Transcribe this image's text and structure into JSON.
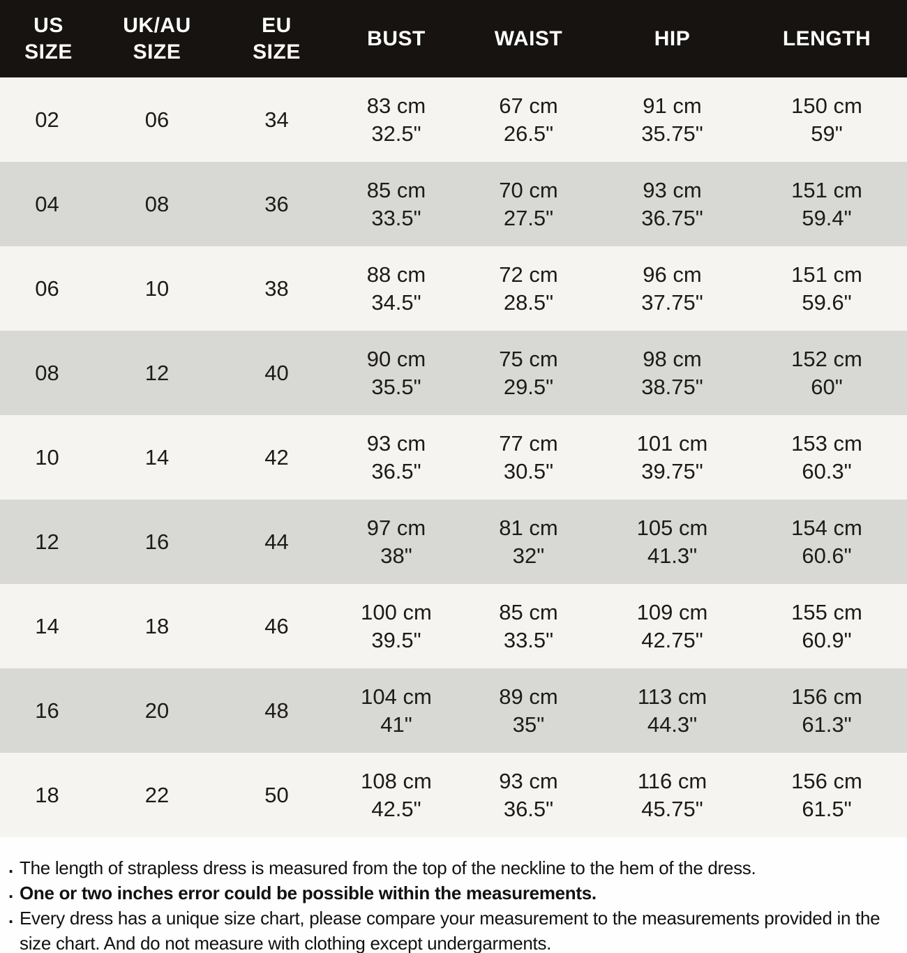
{
  "colors": {
    "header_bg": "#161310",
    "header_text": "#ffffff",
    "row_light": "#f5f4f1",
    "row_gray": "#d8d8d5",
    "body_text": "#1d1b1a"
  },
  "table": {
    "headers": [
      "US\nSIZE",
      "UK/AU\nSIZE",
      "EU\nSIZE",
      "BUST",
      "WAIST",
      "HIP",
      "LENGTH"
    ],
    "rows": [
      {
        "us": "02",
        "uk": "06",
        "eu": "34",
        "bust": [
          "83 cm",
          "32.5\""
        ],
        "waist": [
          "67 cm",
          "26.5\""
        ],
        "hip": [
          "91 cm",
          "35.75\""
        ],
        "length": [
          "150 cm",
          "59\""
        ]
      },
      {
        "us": "04",
        "uk": "08",
        "eu": "36",
        "bust": [
          "85 cm",
          "33.5\""
        ],
        "waist": [
          "70 cm",
          "27.5\""
        ],
        "hip": [
          "93 cm",
          "36.75\""
        ],
        "length": [
          "151 cm",
          "59.4\""
        ]
      },
      {
        "us": "06",
        "uk": "10",
        "eu": "38",
        "bust": [
          "88 cm",
          "34.5\""
        ],
        "waist": [
          "72 cm",
          "28.5\""
        ],
        "hip": [
          "96 cm",
          "37.75\""
        ],
        "length": [
          "151 cm",
          "59.6\""
        ]
      },
      {
        "us": "08",
        "uk": "12",
        "eu": "40",
        "bust": [
          "90 cm",
          "35.5\""
        ],
        "waist": [
          "75 cm",
          "29.5\""
        ],
        "hip": [
          "98 cm",
          "38.75\""
        ],
        "length": [
          "152 cm",
          "60\""
        ]
      },
      {
        "us": "10",
        "uk": "14",
        "eu": "42",
        "bust": [
          "93 cm",
          "36.5\""
        ],
        "waist": [
          "77 cm",
          "30.5\""
        ],
        "hip": [
          "101 cm",
          "39.75\""
        ],
        "length": [
          "153 cm",
          "60.3\""
        ]
      },
      {
        "us": "12",
        "uk": "16",
        "eu": "44",
        "bust": [
          "97 cm",
          "38\""
        ],
        "waist": [
          "81 cm",
          "32\""
        ],
        "hip": [
          "105 cm",
          "41.3\""
        ],
        "length": [
          "154 cm",
          "60.6\""
        ]
      },
      {
        "us": "14",
        "uk": "18",
        "eu": "46",
        "bust": [
          "100 cm",
          "39.5\""
        ],
        "waist": [
          "85 cm",
          "33.5\""
        ],
        "hip": [
          "109 cm",
          "42.75\""
        ],
        "length": [
          "155 cm",
          "60.9\""
        ]
      },
      {
        "us": "16",
        "uk": "20",
        "eu": "48",
        "bust": [
          "104 cm",
          "41\""
        ],
        "waist": [
          "89 cm",
          "35\""
        ],
        "hip": [
          "113 cm",
          "44.3\""
        ],
        "length": [
          "156 cm",
          "61.3\""
        ]
      },
      {
        "us": "18",
        "uk": "22",
        "eu": "50",
        "bust": [
          "108 cm",
          "42.5\""
        ],
        "waist": [
          "93 cm",
          "36.5\""
        ],
        "hip": [
          "116 cm",
          "45.75\""
        ],
        "length": [
          "156 cm",
          "61.5\""
        ]
      }
    ]
  },
  "notes": {
    "bullet": ".",
    "items": [
      {
        "text": "The length of strapless dress is measured from the top of the neckline to the hem of the dress.",
        "bold": false
      },
      {
        "text": "One or two inches error could be possible within the measurements.",
        "bold": true
      },
      {
        "text": "Every dress has a unique size chart, please compare your measurement to the measurements provided in the size chart. And do not measure with clothing except undergarments.",
        "bold": false
      }
    ]
  }
}
